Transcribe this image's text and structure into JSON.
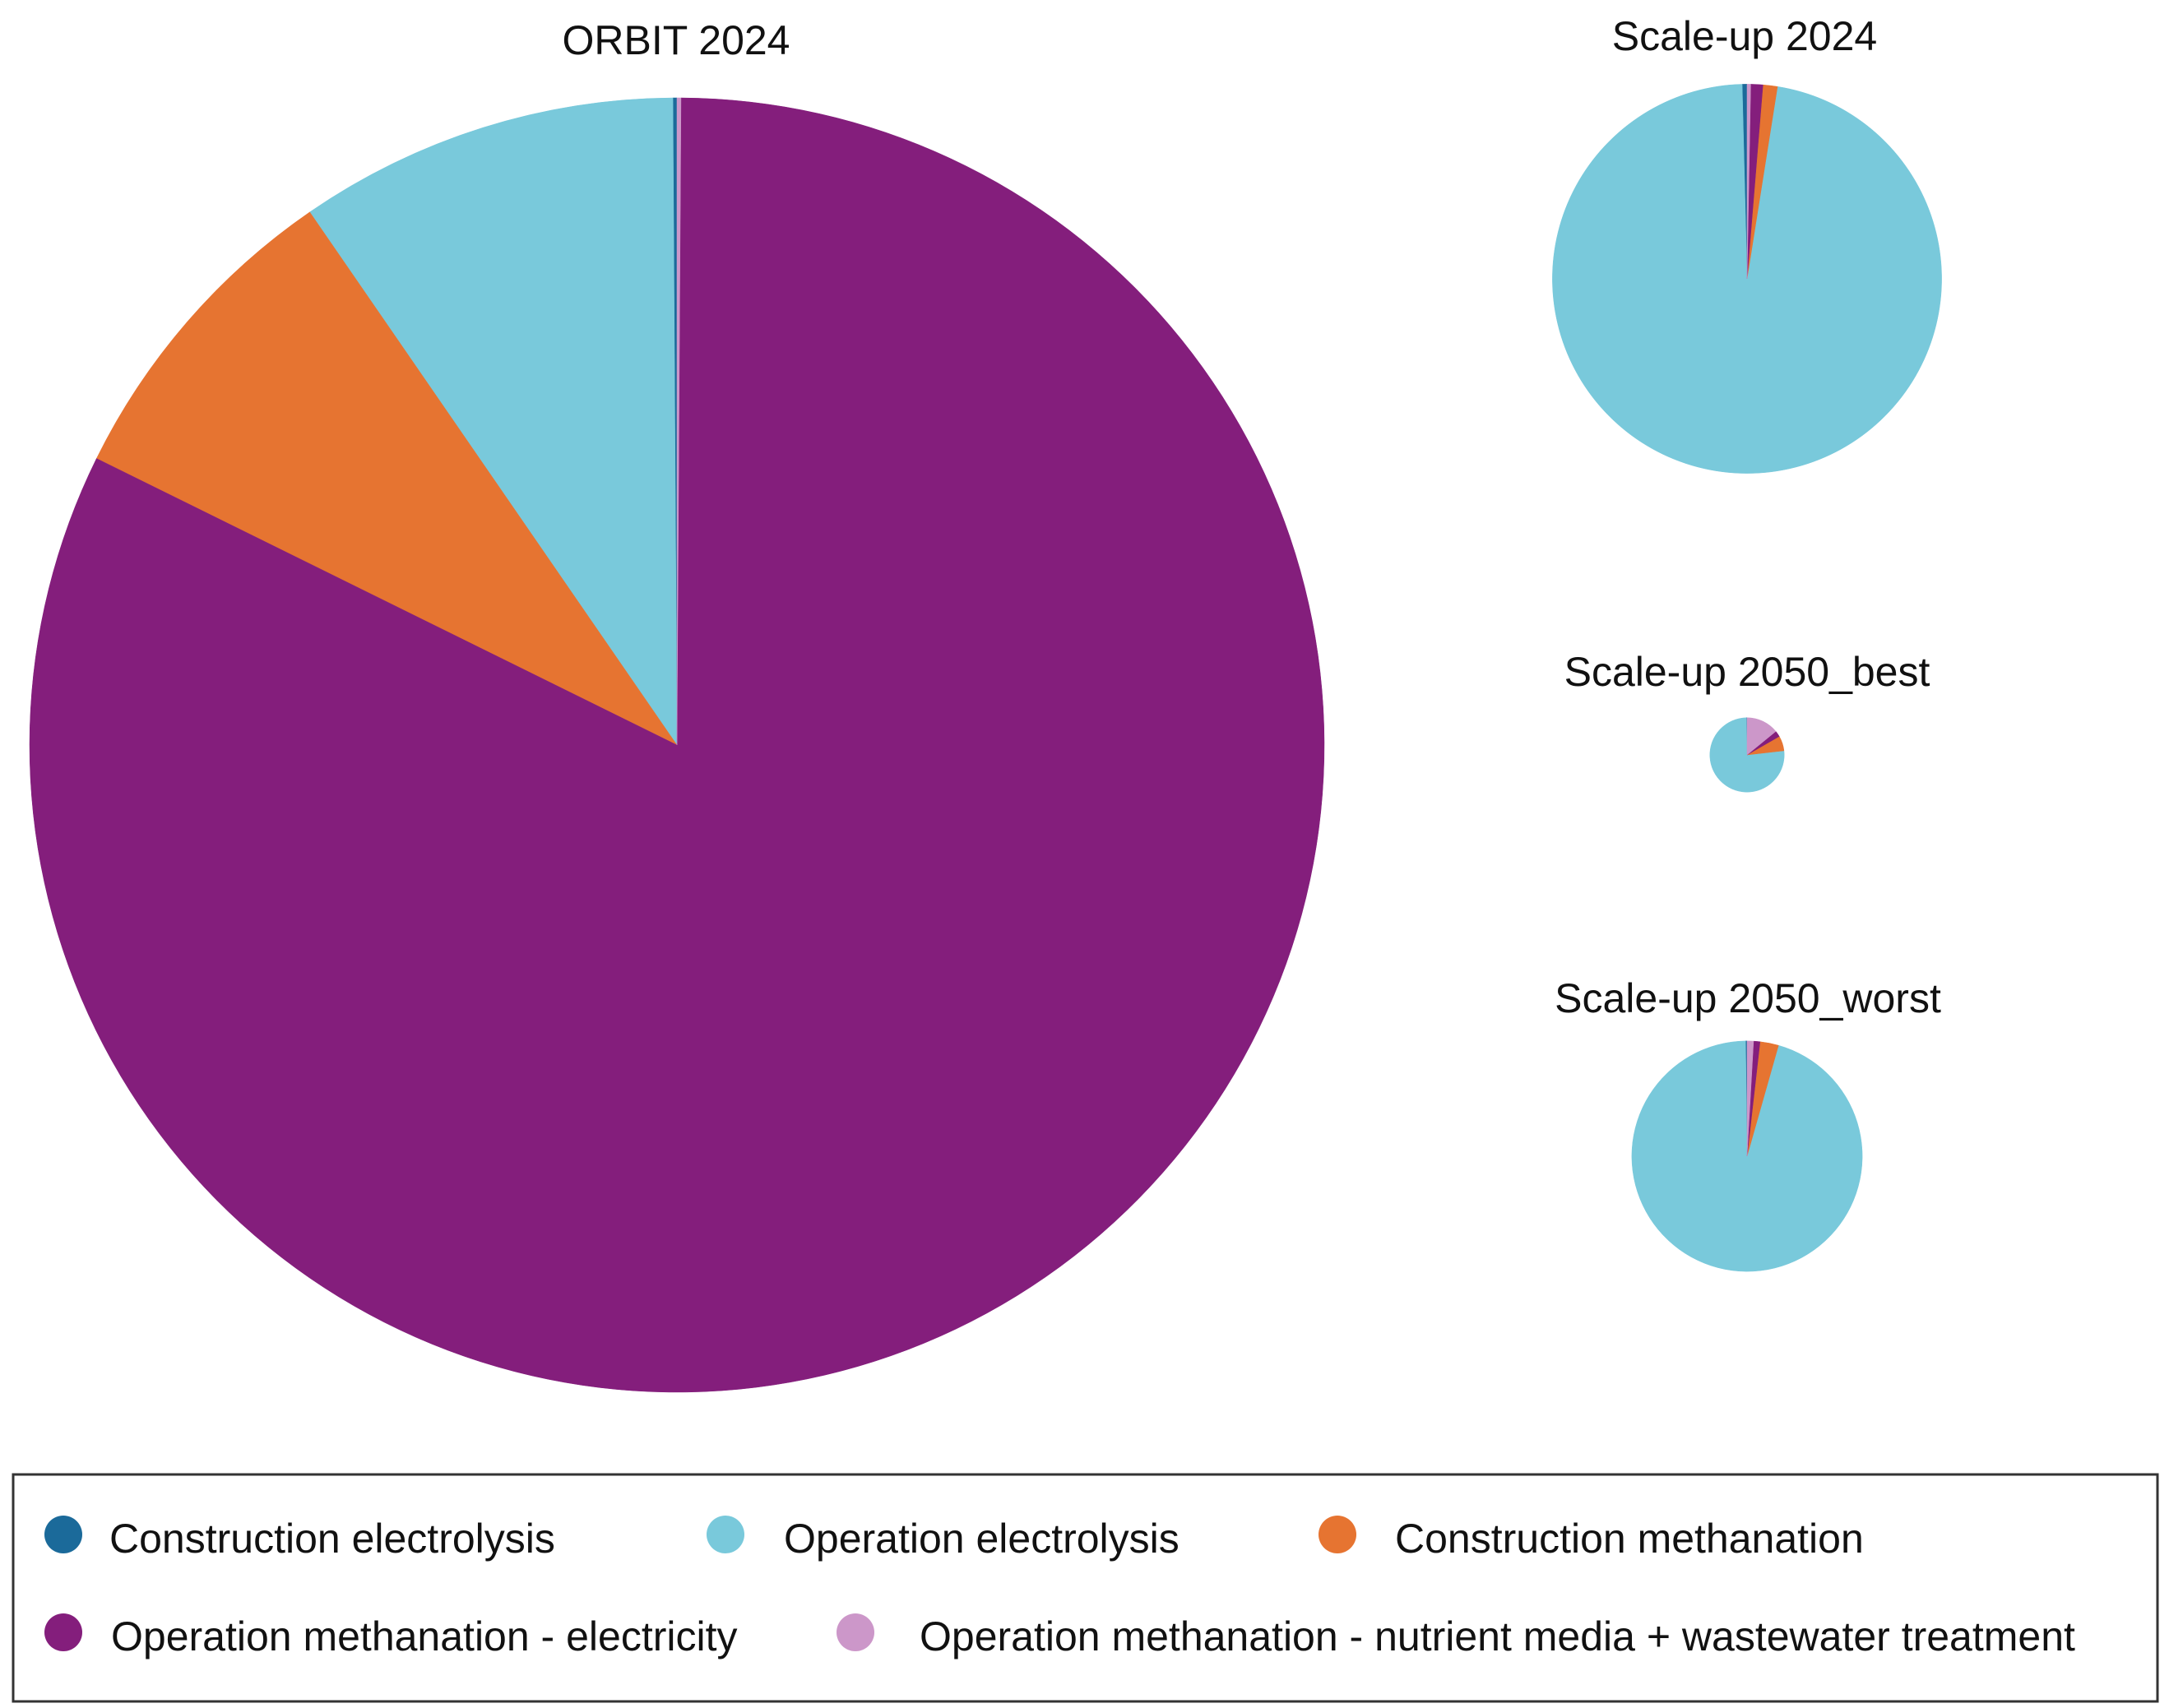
{
  "chart_data": {
    "type": "pie",
    "categories": [
      "Construction electrolysis",
      "Operation electrolysis",
      "Construction methanation",
      "Operation methanation - electricity",
      "Operation methanation - nutrient media + wastewater treatment"
    ],
    "colors": [
      "#1b6a9a",
      "#79c9db",
      "#e67431",
      "#841e7c",
      "#cc97c9"
    ],
    "legend": {
      "placement": "bottom"
    },
    "pies": [
      {
        "title": "ORBIT 2024",
        "relative_total": 1.0,
        "values": [
          0.1,
          9.5,
          8.1,
          82.2,
          0.1
        ]
      },
      {
        "title": "Scale-up 2024",
        "relative_total": 0.0904,
        "values": [
          0.4,
          97.1,
          1.2,
          1.0,
          0.3
        ]
      },
      {
        "title": "Scale-up 2050_best",
        "relative_total": 0.0033,
        "values": [
          0.3,
          76.5,
          6.5,
          2.6,
          14.1
        ]
      },
      {
        "title": "Scale-up 2050_worst",
        "relative_total": 0.0317,
        "values": [
          0.2,
          95.4,
          2.6,
          0.9,
          0.9
        ]
      }
    ]
  }
}
